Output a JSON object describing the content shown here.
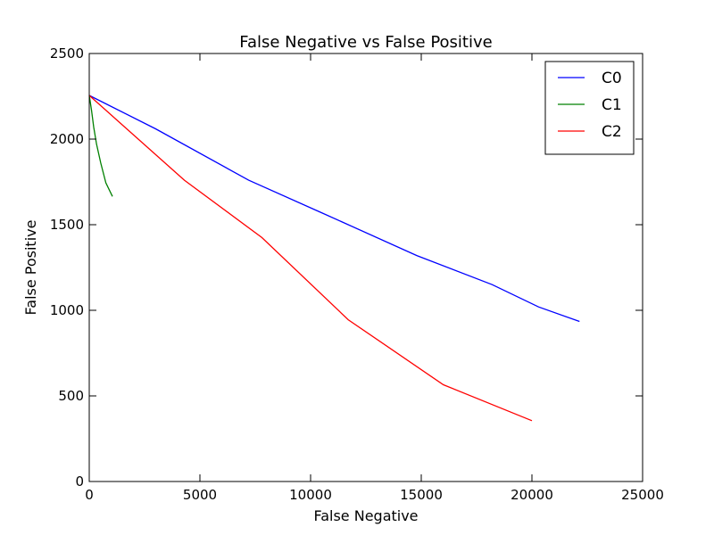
{
  "chart_data": {
    "type": "line",
    "title": "False Negative vs False Positive",
    "xlabel": "False Negative",
    "ylabel": "False Positive",
    "xlim": [
      0,
      25000
    ],
    "ylim": [
      0,
      2500
    ],
    "xticks": [
      0,
      5000,
      10000,
      15000,
      20000,
      25000
    ],
    "yticks": [
      0,
      500,
      1000,
      1500,
      2000,
      2500
    ],
    "grid": false,
    "legend_position": "top-right",
    "series": [
      {
        "name": "C0",
        "color": "#0000ff",
        "points": [
          [
            0,
            2255
          ],
          [
            3000,
            2060
          ],
          [
            7200,
            1760
          ],
          [
            10500,
            1570
          ],
          [
            14800,
            1320
          ],
          [
            18200,
            1150
          ],
          [
            20300,
            1020
          ],
          [
            22150,
            935
          ]
        ]
      },
      {
        "name": "C1",
        "color": "#008000",
        "points": [
          [
            0,
            2255
          ],
          [
            100,
            2170
          ],
          [
            200,
            2070
          ],
          [
            330,
            1970
          ],
          [
            520,
            1860
          ],
          [
            750,
            1745
          ],
          [
            1050,
            1665
          ]
        ]
      },
      {
        "name": "C2",
        "color": "#ff0000",
        "points": [
          [
            0,
            2255
          ],
          [
            4300,
            1760
          ],
          [
            7800,
            1425
          ],
          [
            11700,
            945
          ],
          [
            16000,
            565
          ],
          [
            20000,
            355
          ]
        ]
      }
    ]
  }
}
